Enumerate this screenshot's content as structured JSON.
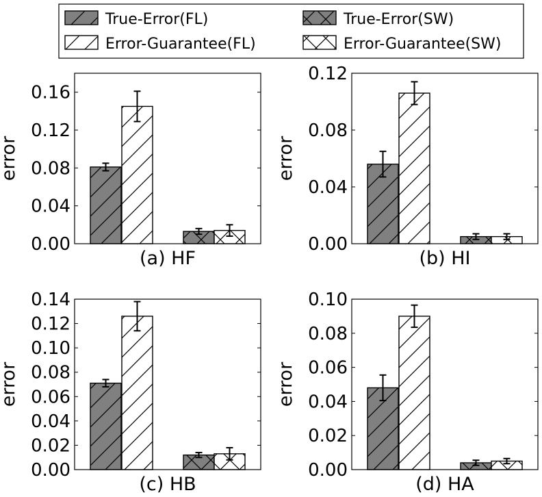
{
  "legend": {
    "items": [
      {
        "label": "True-Error(FL)",
        "style": "fl-true"
      },
      {
        "label": "True-Error(SW)",
        "style": "sw-true"
      },
      {
        "label": "Error-Guarantee(FL)",
        "style": "fl-guar"
      },
      {
        "label": "Error-Guarantee(SW)",
        "style": "sw-guar"
      }
    ]
  },
  "colors": {
    "true_error_fill": "#808080",
    "guarantee_fill": "#ffffff",
    "edge": "#000000"
  },
  "chart_data": [
    {
      "type": "bar",
      "caption": "(a) HF",
      "ylabel": "error",
      "ylim": [
        0,
        0.18
      ],
      "yticks": [
        "0.00",
        "0.04",
        "0.08",
        "0.12",
        "0.16"
      ],
      "categories": [
        "FL",
        "SW"
      ],
      "series": [
        {
          "name": "True-Error",
          "values": [
            0.081,
            0.013
          ],
          "err": [
            0.004,
            0.003
          ]
        },
        {
          "name": "Error-Guarantee",
          "values": [
            0.145,
            0.014
          ],
          "err": [
            0.016,
            0.006
          ]
        }
      ]
    },
    {
      "type": "bar",
      "caption": "(b) HI",
      "ylabel": "error",
      "ylim": [
        0,
        0.12
      ],
      "yticks": [
        "0.00",
        "0.04",
        "0.08",
        "0.12"
      ],
      "categories": [
        "FL",
        "SW"
      ],
      "series": [
        {
          "name": "True-Error",
          "values": [
            0.056,
            0.005
          ],
          "err": [
            0.009,
            0.002
          ]
        },
        {
          "name": "Error-Guarantee",
          "values": [
            0.106,
            0.005
          ],
          "err": [
            0.008,
            0.002
          ]
        }
      ]
    },
    {
      "type": "bar",
      "caption": "(c) HB",
      "ylabel": "error",
      "ylim": [
        0,
        0.14
      ],
      "yticks": [
        "0.00",
        "0.02",
        "0.04",
        "0.06",
        "0.08",
        "0.10",
        "0.12",
        "0.14"
      ],
      "categories": [
        "FL",
        "SW"
      ],
      "series": [
        {
          "name": "True-Error",
          "values": [
            0.071,
            0.012
          ],
          "err": [
            0.003,
            0.002
          ]
        },
        {
          "name": "Error-Guarantee",
          "values": [
            0.126,
            0.013
          ],
          "err": [
            0.012,
            0.005
          ]
        }
      ]
    },
    {
      "type": "bar",
      "caption": "(d) HA",
      "ylabel": "error",
      "ylim": [
        0,
        0.1
      ],
      "yticks": [
        "0.00",
        "0.02",
        "0.04",
        "0.06",
        "0.08",
        "0.10"
      ],
      "categories": [
        "FL",
        "SW"
      ],
      "series": [
        {
          "name": "True-Error",
          "values": [
            0.048,
            0.004
          ],
          "err": [
            0.0075,
            0.0015
          ]
        },
        {
          "name": "Error-Guarantee",
          "values": [
            0.09,
            0.005
          ],
          "err": [
            0.0065,
            0.0015
          ]
        }
      ]
    }
  ]
}
